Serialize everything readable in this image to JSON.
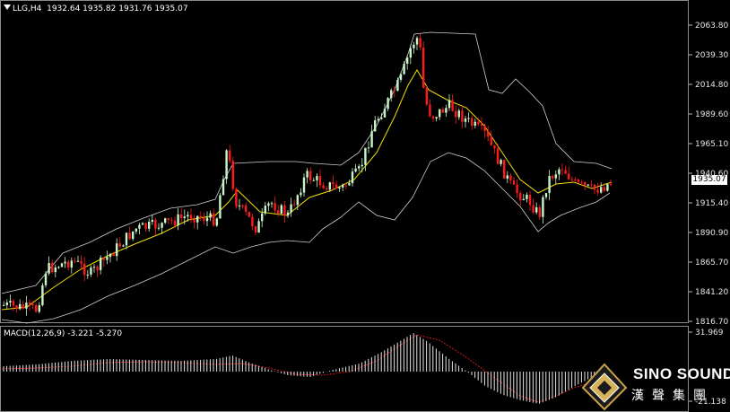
{
  "header": {
    "symbol": "LLG,H4",
    "ohlc": "1932.64 1935.82 1931.76 1935.07"
  },
  "price_axis": {
    "labels": [
      "2063.80",
      "2039.30",
      "2014.80",
      "1989.60",
      "1965.10",
      "1940.60",
      "1915.40",
      "1890.90",
      "1865.70",
      "1841.20",
      "1816.70"
    ],
    "current_price": "1935.07"
  },
  "macd_panel": {
    "label": "MACD(12,26,9) -3.221 -5.270",
    "axis_labels": [
      "31.969",
      "-21.138"
    ],
    "colors": {
      "histogram": "#e6e6e6",
      "signal": "#ff2020"
    }
  },
  "logo": {
    "title": "SINO SOUND",
    "subtitle": "漢聲集團"
  },
  "colors": {
    "background": "#000000",
    "bull_candle": "#c8f5c8",
    "bear_candle": "#ff1a1a",
    "moving_average": "#f0e000",
    "bollinger": "#cfcfcf"
  }
}
